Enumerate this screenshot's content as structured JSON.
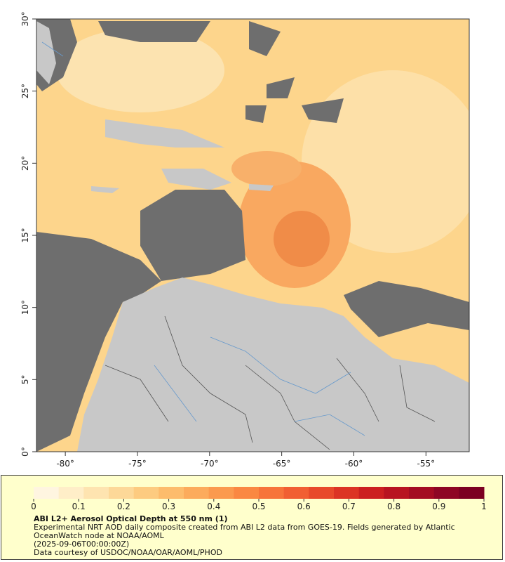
{
  "map": {
    "xlim": [
      -82,
      -52
    ],
    "ylim": [
      0,
      30
    ],
    "xticks": [
      {
        "value": -80,
        "label": "-80°"
      },
      {
        "value": -75,
        "label": "-75°"
      },
      {
        "value": -70,
        "label": "-70°"
      },
      {
        "value": -65,
        "label": "-65°"
      },
      {
        "value": -60,
        "label": "-60°"
      },
      {
        "value": -55,
        "label": "-55°"
      }
    ],
    "yticks": [
      {
        "value": 0,
        "label": "0°"
      },
      {
        "value": 5,
        "label": "5°"
      },
      {
        "value": 10,
        "label": "10°"
      },
      {
        "value": 15,
        "label": "15°"
      },
      {
        "value": 20,
        "label": "20°"
      },
      {
        "value": 25,
        "label": "25°"
      },
      {
        "value": 30,
        "label": "30°"
      }
    ]
  },
  "colorbar": {
    "clim": [
      0,
      1
    ],
    "ticks": [
      0,
      0.1,
      0.2,
      0.3,
      0.4,
      0.5,
      0.6,
      0.7,
      0.8,
      0.9,
      1
    ],
    "colors": [
      "#fff5e0",
      "#ffeec8",
      "#fee4b0",
      "#fdd898",
      "#fdcb80",
      "#fdbc6c",
      "#fcab5c",
      "#fb9a4e",
      "#fa8842",
      "#f7743a",
      "#f15f32",
      "#e84a2a",
      "#dc3424",
      "#cc2020",
      "#b81420",
      "#a40c22",
      "#8e0624",
      "#7c0022"
    ]
  },
  "legend": {
    "title": "ABI L2+ Aerosol Optical Depth at 550 nm (1)",
    "description": "Experimental NRT AOD daily composite created from ABI L2 data from GOES-19. Fields generated by Atlantic OceanWatch node at NOAA/AOML",
    "time": "(2025-09-06T00:00:00Z)",
    "credit": "Data courtesy of USDOC/NOAA/OAR/AOML/PHOD"
  }
}
